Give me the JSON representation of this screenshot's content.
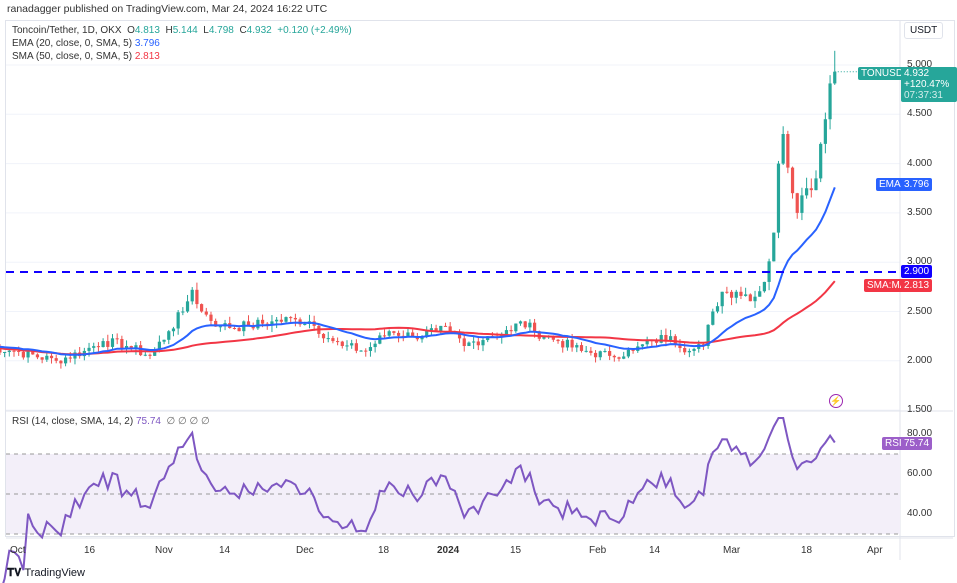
{
  "header": {
    "published": "ranadagger published on TradingView.com, Mar 24, 2024 16:22 UTC"
  },
  "legend": {
    "symbol": "Toncoin/Tether, 1D, OKX",
    "o_label": "O",
    "o": "4.813",
    "h_label": "H",
    "h": "5.144",
    "l_label": "L",
    "l": "4.798",
    "c_label": "C",
    "c": "4.932",
    "change": "+0.120 (+2.49%)",
    "ema": "EMA (20, close, 0, SMA, 5)",
    "ema_val": "3.796",
    "sma": "SMA (50, close, 0, SMA, 5)",
    "sma_val": "2.813",
    "rsi": "RSI (14, close, SMA, 14, 2)",
    "rsi_val": "75.74",
    "rsi_extra": "∅ ∅ ∅ ∅"
  },
  "scale": {
    "currency": "USDT",
    "price_ticks": [
      "5.000",
      "4.500",
      "4.000",
      "3.500",
      "3.000",
      "2.500",
      "2.000",
      "1.500"
    ],
    "rsi_ticks": [
      "80.00",
      "60.00",
      "40.00"
    ]
  },
  "labels": {
    "symbol_tag": "TONUSDT",
    "price": "4.932",
    "pct": "+120.47%",
    "countdown": "07:37:31",
    "ema_tag": "EMA",
    "ema_val": "3.796",
    "line_val": "2.900",
    "sma_tag": "SMA:MA",
    "sma_val": "2.813",
    "rsi_tag": "RSI",
    "rsi_val": "75.74"
  },
  "xaxis": [
    "Oct",
    "16",
    "Nov",
    "14",
    "Dec",
    "18",
    "2024",
    "15",
    "Feb",
    "14",
    "Mar",
    "18",
    "Apr"
  ],
  "footer": {
    "brand": "TradingView"
  },
  "colors": {
    "up": "#26a69a",
    "down": "#ef5350",
    "ema": "#2962ff",
    "sma": "#f23645",
    "line": "#1100ff",
    "rsi": "#7e57c2"
  },
  "chart_data": {
    "type": "candlestick",
    "symbol": "TONUSDT",
    "timeframe": "1D",
    "ylim": [
      1.5,
      5.15
    ],
    "horizontal_line": 2.9,
    "close_keypoints": [
      [
        "2023-09-25",
        2.15
      ],
      [
        "2023-10-01",
        2.1
      ],
      [
        "2023-10-10",
        2.0
      ],
      [
        "2023-10-16",
        2.1
      ],
      [
        "2023-10-20",
        2.2
      ],
      [
        "2023-10-25",
        2.15
      ],
      [
        "2023-10-30",
        2.05
      ],
      [
        "2023-11-03",
        2.3
      ],
      [
        "2023-11-06",
        2.5
      ],
      [
        "2023-11-08",
        2.72
      ],
      [
        "2023-11-10",
        2.5
      ],
      [
        "2023-11-14",
        2.35
      ],
      [
        "2023-11-20",
        2.35
      ],
      [
        "2023-11-25",
        2.4
      ],
      [
        "2023-11-30",
        2.42
      ],
      [
        "2023-12-03",
        2.4
      ],
      [
        "2023-12-08",
        2.2
      ],
      [
        "2023-12-10",
        2.15
      ],
      [
        "2023-12-15",
        2.1
      ],
      [
        "2023-12-20",
        2.3
      ],
      [
        "2023-12-25",
        2.25
      ],
      [
        "2023-12-30",
        2.3
      ],
      [
        "2024-01-02",
        2.3
      ],
      [
        "2024-01-05",
        2.15
      ],
      [
        "2024-01-10",
        2.25
      ],
      [
        "2024-01-15",
        2.3
      ],
      [
        "2024-01-17",
        2.4
      ],
      [
        "2024-01-20",
        2.3
      ],
      [
        "2024-01-25",
        2.2
      ],
      [
        "2024-01-30",
        2.1
      ],
      [
        "2024-02-05",
        2.05
      ],
      [
        "2024-02-10",
        2.1
      ],
      [
        "2024-02-14",
        2.2
      ],
      [
        "2024-02-18",
        2.25
      ],
      [
        "2024-02-22",
        2.1
      ],
      [
        "2024-02-25",
        2.15
      ],
      [
        "2024-02-27",
        2.5
      ],
      [
        "2024-02-29",
        2.7
      ],
      [
        "2024-03-03",
        2.7
      ],
      [
        "2024-03-07",
        2.65
      ],
      [
        "2024-03-09",
        2.8
      ],
      [
        "2024-03-11",
        3.3
      ],
      [
        "2024-03-12",
        4.0
      ],
      [
        "2024-03-13",
        4.3
      ],
      [
        "2024-03-15",
        3.7
      ],
      [
        "2024-03-16",
        3.5
      ],
      [
        "2024-03-18",
        3.75
      ],
      [
        "2024-03-20",
        3.85
      ],
      [
        "2024-03-21",
        4.2
      ],
      [
        "2024-03-22",
        4.45
      ],
      [
        "2024-03-23",
        4.813
      ],
      [
        "2024-03-24",
        4.932
      ]
    ],
    "last": {
      "open": 4.813,
      "high": 5.144,
      "low": 4.798,
      "close": 4.932
    },
    "ema": {
      "period": 20,
      "last": 3.796
    },
    "sma": {
      "period": 50,
      "last": 2.813
    },
    "rsi": {
      "period": 14,
      "last": 75.74,
      "ylim": [
        20,
        90
      ],
      "bands": [
        70,
        50,
        30
      ]
    }
  }
}
